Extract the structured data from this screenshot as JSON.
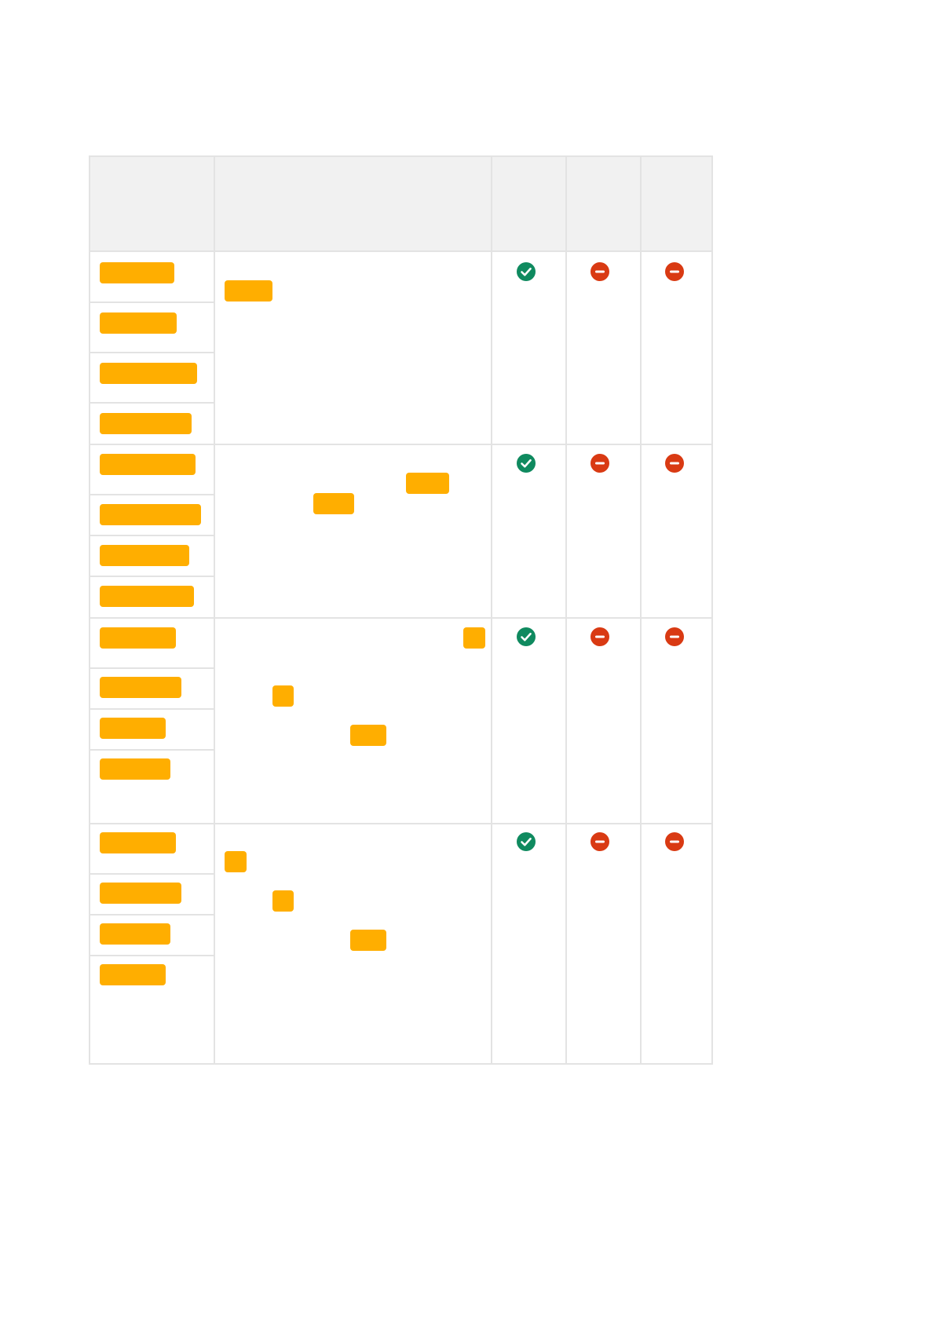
{
  "colors": {
    "border": "#e3e3e3",
    "header_background": "#f1f1f1",
    "redaction": "#ffae00",
    "ok": "#0f8a5f",
    "blocked": "#d93a13"
  },
  "table": {
    "header_cells": [
      "",
      "",
      "",
      "",
      ""
    ],
    "rows": [
      {
        "status_icons": [
          "check-circle-icon",
          "minus-circle-icon",
          "minus-circle-icon"
        ]
      },
      {
        "status_icons": [
          "check-circle-icon",
          "minus-circle-icon",
          "minus-circle-icon"
        ]
      },
      {
        "status_icons": [
          "check-circle-icon",
          "minus-circle-icon",
          "minus-circle-icon"
        ]
      },
      {
        "status_icons": [
          "check-circle-icon",
          "minus-circle-icon",
          "minus-circle-icon"
        ]
      }
    ]
  }
}
